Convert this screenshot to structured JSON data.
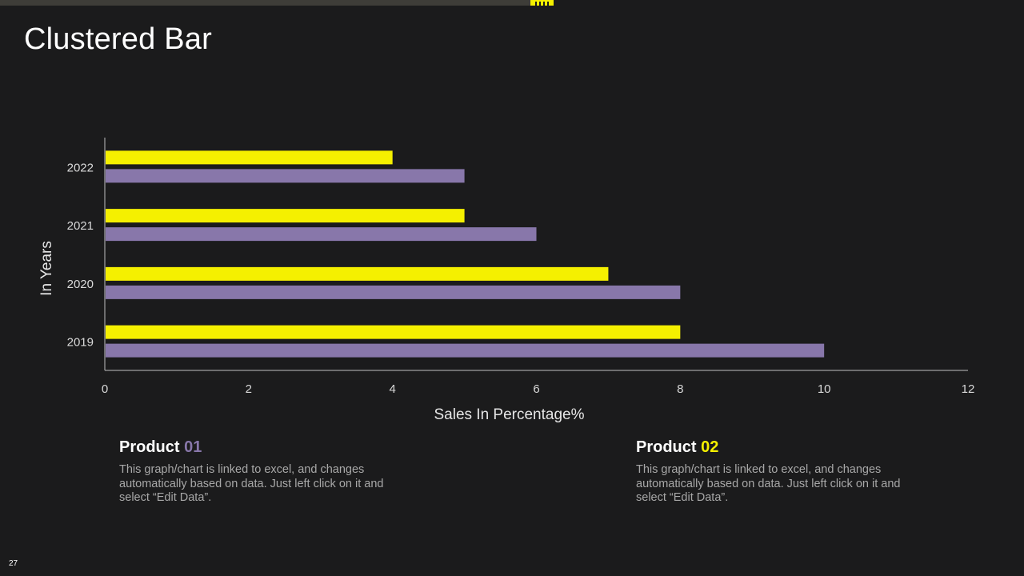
{
  "slide": {
    "title": "Clustered Bar",
    "page_number": "27"
  },
  "colors": {
    "background": "#1b1b1c",
    "product_01": "#8877aa",
    "product_02": "#f5f000",
    "axis": "#bfbfbf",
    "text_muted": "#a8a8a8"
  },
  "chart_data": {
    "type": "bar",
    "orientation": "horizontal",
    "title": "",
    "xlabel": "Sales In Percentage%",
    "ylabel": "In Years",
    "categories": [
      "2019",
      "2020",
      "2021",
      "2022"
    ],
    "xlim": [
      0,
      12
    ],
    "xticks": [
      0,
      2,
      4,
      6,
      8,
      10,
      12
    ],
    "grid": false,
    "series": [
      {
        "name": "Product 01",
        "color": "#8877aa",
        "values": [
          10,
          8,
          6,
          5
        ]
      },
      {
        "name": "Product 02",
        "color": "#f5f000",
        "values": [
          8,
          7,
          5,
          4
        ]
      }
    ]
  },
  "products": [
    {
      "label": "Product",
      "number": "01",
      "accent": "#8877aa",
      "description": "This graph/chart is linked to excel, and changes automatically based on data. Just left click on it and select “Edit Data”."
    },
    {
      "label": "Product",
      "number": "02",
      "accent": "#f5f000",
      "description": "This graph/chart is linked to excel, and changes automatically based on data. Just left click on it and select “Edit Data”."
    }
  ]
}
